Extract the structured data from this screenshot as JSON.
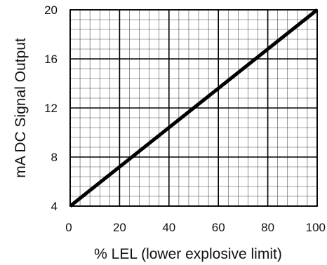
{
  "chart_data": {
    "type": "line",
    "title": "",
    "xlabel": "% LEL (lower explosive limit)",
    "ylabel": "mA DC Signal Output",
    "xlim": [
      0,
      100
    ],
    "ylim": [
      4,
      20
    ],
    "x_ticks": [
      0,
      20,
      40,
      60,
      80,
      100
    ],
    "y_ticks": [
      4,
      8,
      12,
      16,
      20
    ],
    "x_tick_labels": [
      "0",
      "20",
      "40",
      "60",
      "80",
      "100"
    ],
    "y_tick_labels": [
      "4",
      "8",
      "12",
      "16",
      "20"
    ],
    "x_minor_step": 4,
    "y_minor_step": 0.8,
    "grid": true,
    "legend": "none",
    "series": [
      {
        "x": [
          0,
          100
        ],
        "y": [
          4,
          20
        ],
        "color": "#000000"
      }
    ]
  }
}
